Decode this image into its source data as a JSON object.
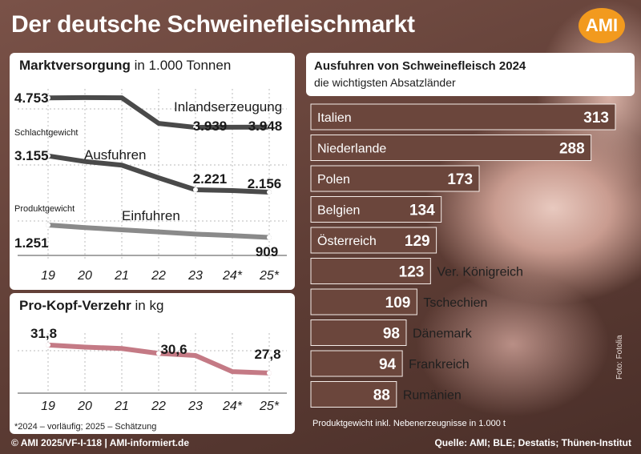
{
  "title": "Der deutsche Schweinefleischmarkt",
  "logo": "AMI",
  "colors": {
    "brown_dark": "#6b463c",
    "line_grey": "#4d4d4d",
    "line_pink": "#c47a85",
    "logo": "#f29a1e"
  },
  "chart_data": [
    {
      "type": "line",
      "title_bold": "Marktversorgung",
      "title_rest": " in 1.000 Tonnen",
      "x": [
        "19",
        "20",
        "21",
        "22",
        "23",
        "24*",
        "25*"
      ],
      "series": [
        {
          "name": "Inlandserzeugung",
          "values": [
            4753,
            4760,
            4755,
            4050,
            3939,
            3945,
            3948
          ]
        },
        {
          "name": "Ausfuhren",
          "values": [
            3155,
            3000,
            2900,
            2550,
            2221,
            2200,
            2156
          ]
        },
        {
          "name": "Einfuhren",
          "values": [
            1251,
            1180,
            1120,
            1060,
            1000,
            960,
            909
          ]
        }
      ],
      "value_labels": {
        "s0_first": "4.753",
        "s0_4": "3.939",
        "s0_6": "3.948",
        "s1_first": "3.155",
        "s1_4": "2.221",
        "s1_6": "2.156",
        "s2_first": "1.251",
        "s2_6": "909"
      },
      "side_labels": {
        "schlacht": "Schlachtgewicht",
        "produkt": "Produktgewicht"
      },
      "ylim": [
        700,
        5000
      ]
    },
    {
      "type": "line",
      "title_bold": "Pro-Kopf-Verzehr",
      "title_rest": " in kg",
      "x": [
        "19",
        "20",
        "21",
        "22",
        "23",
        "24*",
        "25*"
      ],
      "series": [
        {
          "name": "",
          "values": [
            31.8,
            31.5,
            31.3,
            30.6,
            30.3,
            28.0,
            27.8
          ]
        }
      ],
      "value_labels": {
        "first": "31,8",
        "third": "30,6",
        "last": "27,8"
      },
      "ylim": [
        25.5,
        33.5
      ]
    },
    {
      "type": "bar",
      "title": "Ausfuhren von Schweinefleisch 2024",
      "subtitle": "die wichtigsten Absatzländer",
      "categories": [
        "Italien",
        "Niederlande",
        "Polen",
        "Belgien",
        "Österreich",
        "Ver. Königreich",
        "Tschechien",
        "Dänemark",
        "Frankreich",
        "Rumänien"
      ],
      "values": [
        313,
        288,
        173,
        134,
        129,
        123,
        109,
        98,
        94,
        88
      ],
      "value_labels": [
        "313",
        "288",
        "173",
        "134",
        "129",
        "123",
        "109",
        "98",
        "94",
        "88"
      ],
      "note": "Produktgewicht inkl. Nebenerzeugnisse in 1.000 t"
    }
  ],
  "footnote": "*2024 – vorläufig; 2025 – Schätzung",
  "footer_left": "© AMI 2025/VF-I-118 | AMI-informiert.de",
  "footer_right": "Quelle: AMI; BLE; Destatis; Thünen-Institut",
  "photo_credit": "Foto: Fotolia"
}
